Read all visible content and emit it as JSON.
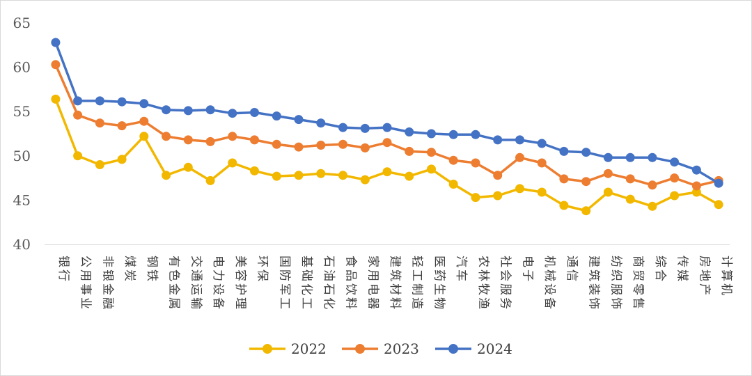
{
  "chart_data": {
    "type": "line",
    "title": "",
    "xlabel": "",
    "ylabel": "",
    "ylim": [
      40,
      65
    ],
    "yticks": [
      40,
      45,
      50,
      55,
      60,
      65
    ],
    "grid": false,
    "legend_position": "bottom",
    "categories": [
      "银行",
      "公用事业",
      "非银金融",
      "煤炭",
      "钢铁",
      "有色金属",
      "交通运输",
      "电力设备",
      "美容护理",
      "环保",
      "国防军工",
      "基础化工",
      "石油石化",
      "食品饮料",
      "家用电器",
      "建筑材料",
      "轻工制造",
      "医药生物",
      "汽车",
      "农林牧渔",
      "社会服务",
      "电子",
      "机械设备",
      "通信",
      "建筑装饰",
      "纺织服饰",
      "商贸零售",
      "综合",
      "传媒",
      "房地产",
      "计算机"
    ],
    "series": [
      {
        "name": "2022",
        "color": "#F2B800",
        "values": [
          56.4,
          50.0,
          49.0,
          49.6,
          52.2,
          47.8,
          48.7,
          47.2,
          49.2,
          48.3,
          47.7,
          47.8,
          48.0,
          47.8,
          47.3,
          48.2,
          47.7,
          48.5,
          46.8,
          45.3,
          45.5,
          46.3,
          45.9,
          44.4,
          43.8,
          45.9,
          45.1,
          44.3,
          45.5,
          45.9,
          44.5
        ]
      },
      {
        "name": "2023",
        "color": "#ED7D31",
        "values": [
          60.3,
          54.6,
          53.7,
          53.4,
          53.9,
          52.2,
          51.8,
          51.6,
          52.2,
          51.8,
          51.3,
          51.0,
          51.2,
          51.3,
          50.9,
          51.5,
          50.5,
          50.4,
          49.5,
          49.2,
          47.8,
          49.8,
          49.2,
          47.4,
          47.1,
          48.0,
          47.4,
          46.7,
          47.5,
          46.6,
          47.2
        ]
      },
      {
        "name": "2024",
        "color": "#4472C4",
        "values": [
          62.8,
          56.2,
          56.2,
          56.1,
          55.9,
          55.2,
          55.1,
          55.2,
          54.8,
          54.9,
          54.5,
          54.1,
          53.7,
          53.2,
          53.1,
          53.2,
          52.7,
          52.5,
          52.4,
          52.4,
          51.8,
          51.8,
          51.4,
          50.5,
          50.4,
          49.8,
          49.8,
          49.8,
          49.3,
          48.4,
          46.9
        ]
      }
    ]
  }
}
